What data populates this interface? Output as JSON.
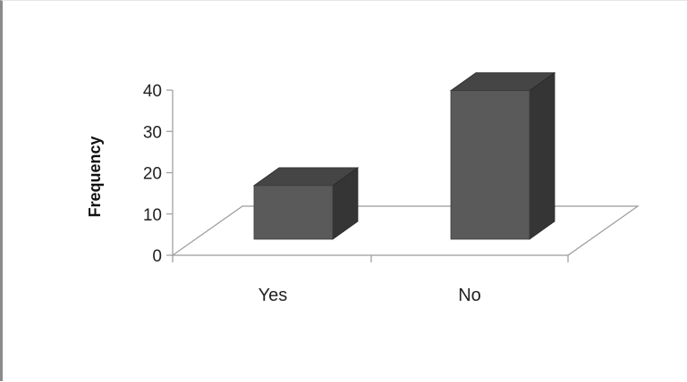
{
  "chart_data": {
    "type": "bar",
    "categories": [
      "Yes",
      "No"
    ],
    "values": [
      13,
      36
    ],
    "title": "",
    "xlabel": "",
    "ylabel": "Frequency",
    "ylim": [
      0,
      40
    ],
    "yticks": [
      "0",
      "10",
      "20",
      "30",
      "40"
    ],
    "grid": false,
    "legend": "none",
    "style": "3d-column",
    "colors": {
      "bar_front": "#5a5a5a",
      "bar_side": "#353535",
      "bar_top": "#454545",
      "axis": "#9a9a9a"
    }
  }
}
